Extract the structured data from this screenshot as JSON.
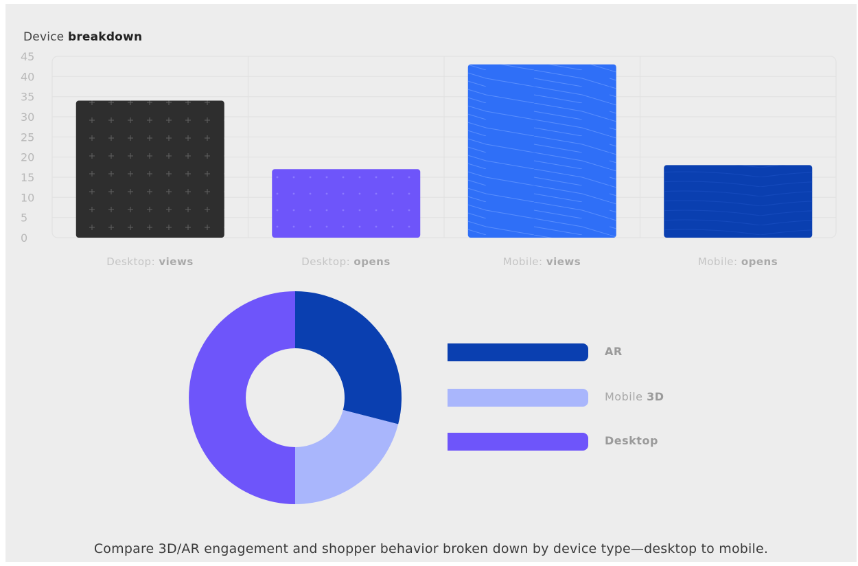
{
  "title": {
    "normal": "Device ",
    "bold": "breakdown"
  },
  "caption": "Compare 3D/AR engagement and shopper behavior broken down by device type—desktop to mobile.",
  "chart_data": [
    {
      "type": "bar",
      "categories": [
        "Desktop: views",
        "Desktop: opens",
        "Mobile: views",
        "Mobile: opens"
      ],
      "category_parts": [
        {
          "normal": "Desktop: ",
          "bold": "views"
        },
        {
          "normal": "Desktop: ",
          "bold": "opens"
        },
        {
          "normal": "Mobile: ",
          "bold": "views"
        },
        {
          "normal": "Mobile: ",
          "bold": "opens"
        }
      ],
      "values": [
        34,
        17,
        43,
        18
      ],
      "colors": [
        "#2e2e2e",
        "#6e55fa",
        "#2f6ff7",
        "#0a3fb0"
      ],
      "yticks": [
        0,
        5,
        10,
        15,
        20,
        25,
        30,
        35,
        40,
        45
      ],
      "ylim": [
        0,
        45
      ],
      "grid": true
    },
    {
      "type": "pie",
      "variant": "donut",
      "labels": [
        "AR",
        "Mobile 3D",
        "Desktop"
      ],
      "label_parts": [
        {
          "normal": "",
          "bold": "AR"
        },
        {
          "normal": "Mobile ",
          "bold": "3D"
        },
        {
          "normal": "",
          "bold": "Desktop"
        }
      ],
      "values": [
        29,
        21,
        50
      ],
      "colors": [
        "#0a3fb0",
        "#a9b6fc",
        "#6e55fa"
      ],
      "legend": "right"
    }
  ]
}
